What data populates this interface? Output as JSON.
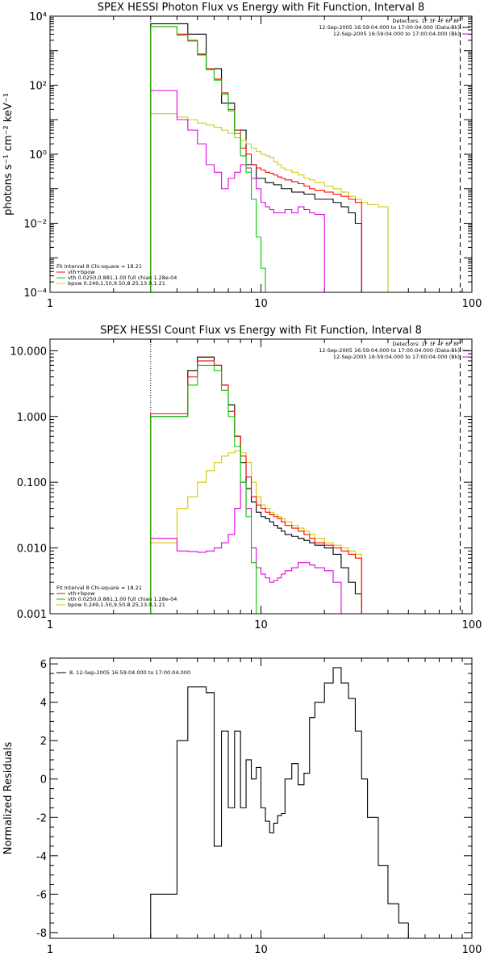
{
  "colors": {
    "data": "#000000",
    "total": "#ff0000",
    "vth": "#00c800",
    "bpow": "#d2c800",
    "bk": "#e000e0"
  },
  "chart_data": [
    {
      "type": "line",
      "title": "SPEX HESSI Photon Flux vs Energy with Fit Function, Interval 8",
      "ylabel": "photons s⁻¹ cm⁻² keV⁻¹",
      "xlabel": "",
      "xscale": "log",
      "yscale": "log",
      "xlim": [
        1,
        100
      ],
      "ylim": [
        0.0001,
        10000
      ],
      "x_ticks": [
        "1",
        "10",
        "100"
      ],
      "y_ticks": [
        "10⁻⁴",
        "10⁻²",
        "10⁰",
        "10²",
        "10⁴"
      ],
      "annotations": {
        "detectors": "Detectors: 1F 3F 4F 6F 8F",
        "time1": "12-Sep-2005 16:59:04.000 to 17:00:04.000 (Data-Bk)",
        "time2": "12-Sep-2005 16:59:04.000 to 17:00:04.000 (Bk)"
      },
      "legend": {
        "header": "Fit Interval 8   Chi-square = 18.21",
        "entries": [
          "vth+bpow",
          "vth 0.0250,0.881,1.00  full chian 1.28e-04",
          "bpow 0.249,1.50,9.50,8.25,13.0,1.21"
        ]
      },
      "edges": [
        3,
        3.5,
        4,
        4.5,
        5,
        5.5,
        6,
        6.5,
        7,
        7.5,
        8,
        8.5,
        9,
        9.5,
        10,
        10.5,
        11,
        11.5,
        12,
        12.5,
        13,
        14,
        15,
        16,
        17,
        18,
        20,
        22,
        24,
        26,
        28,
        30,
        32,
        36,
        40,
        45,
        50,
        56,
        63,
        70,
        80,
        90
      ],
      "vlines": {
        "dotted": 3,
        "dashed": 88
      },
      "series": [
        {
          "key": "data",
          "values": [
            6000,
            6000,
            6000,
            3000,
            3000,
            300,
            300,
            30,
            30,
            5,
            5,
            0.5,
            0.5,
            0.2,
            0.2,
            0.15,
            0.15,
            0.13,
            0.13,
            0.1,
            0.1,
            0.08,
            0.08,
            0.07,
            0.07,
            0.05,
            0.05,
            0.04,
            0.03,
            0.02,
            0.01
          ]
        },
        {
          "key": "total",
          "values": [
            5000,
            5000,
            3000,
            2000,
            800,
            300,
            150,
            60,
            20,
            5,
            1.5,
            1,
            0.5,
            0.4,
            0.35,
            0.3,
            0.28,
            0.25,
            0.22,
            0.2,
            0.18,
            0.16,
            0.14,
            0.12,
            0.1,
            0.09,
            0.08,
            0.07,
            0.06,
            0.05,
            0.04
          ]
        },
        {
          "key": "vth",
          "values": [
            5000,
            5000,
            2800,
            1900,
            750,
            280,
            140,
            55,
            18,
            4,
            0.9,
            0.3,
            0.05,
            0.004,
            0.0005,
            0.0001,
            0.0001
          ]
        },
        {
          "key": "bpow",
          "values": [
            15,
            15,
            12,
            10,
            8,
            7,
            6,
            5,
            4,
            3,
            2.5,
            2,
            1.5,
            1.2,
            1,
            0.9,
            0.8,
            0.6,
            0.5,
            0.4,
            0.35,
            0.3,
            0.25,
            0.2,
            0.18,
            0.15,
            0.12,
            0.1,
            0.08,
            0.06,
            0.05,
            0.04,
            0.035,
            0.03
          ]
        },
        {
          "key": "bk",
          "values": [
            70,
            70,
            10,
            5,
            2,
            0.5,
            0.3,
            0.1,
            0.2,
            0.3,
            0.5,
            0.4,
            0.2,
            0.1,
            0.04,
            0.03,
            0.025,
            0.02,
            0.02,
            0.02,
            0.025,
            0.02,
            0.03,
            0.025,
            0.02,
            0.018
          ]
        }
      ]
    },
    {
      "type": "line",
      "title": "SPEX HESSI Count Flux vs Energy with Fit Function, Interval 8",
      "ylabel": "",
      "xlabel": "",
      "xscale": "log",
      "yscale": "log",
      "xlim": [
        1,
        100
      ],
      "ylim": [
        0.001,
        15
      ],
      "x_ticks": [
        "1",
        "10",
        "100"
      ],
      "y_ticks": [
        "0.001",
        "0.010",
        "0.100",
        "1.000",
        "10.000"
      ],
      "annotations": {
        "detectors": "Detectors: 1F 3F 4F 6F 8F",
        "time1": "12-Sep-2005 16:59:04.000 to 17:00:04.000 (Data-Bk)",
        "time2": "12-Sep-2005 16:59:04.000 to 17:00:04.000 (Bk)"
      },
      "legend": {
        "header": "Fit Interval 8   Chi-square = 18.21",
        "entries": [
          "vth+bpow",
          "vth 0.0250,0.881,1.00  full chian 1.28e-04",
          "bpow 0.249,1.50,9.50,8.25,13.0,1.21"
        ]
      },
      "edges": [
        3,
        3.5,
        4,
        4.5,
        5,
        5.5,
        6,
        6.5,
        7,
        7.5,
        8,
        8.5,
        9,
        9.5,
        10,
        10.5,
        11,
        11.5,
        12,
        12.5,
        13,
        14,
        15,
        16,
        17,
        18,
        20,
        22,
        24,
        26,
        28,
        30,
        32,
        36,
        40,
        45,
        50,
        56,
        63,
        70,
        80,
        90
      ],
      "vlines": {
        "dotted": 3,
        "dashed": 88
      },
      "series": [
        {
          "key": "data",
          "values": [
            1,
            1,
            1,
            5,
            8,
            8,
            6,
            3,
            1.5,
            0.5,
            0.2,
            0.08,
            0.05,
            0.035,
            0.03,
            0.028,
            0.025,
            0.022,
            0.02,
            0.018,
            0.016,
            0.015,
            0.014,
            0.013,
            0.012,
            0.011,
            0.01,
            0.008,
            0.005,
            0.003,
            0.002
          ]
        },
        {
          "key": "total",
          "values": [
            1.1,
            1.1,
            1.1,
            4,
            7,
            7,
            6,
            3,
            1.2,
            0.5,
            0.25,
            0.12,
            0.06,
            0.045,
            0.04,
            0.035,
            0.032,
            0.03,
            0.028,
            0.025,
            0.022,
            0.02,
            0.018,
            0.016,
            0.014,
            0.012,
            0.011,
            0.01,
            0.009,
            0.008,
            0.007
          ]
        },
        {
          "key": "vth",
          "values": [
            1,
            1,
            1,
            3,
            6,
            6,
            5,
            2.5,
            1,
            0.35,
            0.1,
            0.03,
            0.006,
            0.001,
            0.001
          ]
        },
        {
          "key": "bpow",
          "values": [
            0.012,
            0.012,
            0.04,
            0.06,
            0.1,
            0.15,
            0.2,
            0.25,
            0.28,
            0.3,
            0.28,
            0.2,
            0.1,
            0.06,
            0.045,
            0.04,
            0.035,
            0.032,
            0.03,
            0.028,
            0.025,
            0.022,
            0.02,
            0.018,
            0.016,
            0.014,
            0.012,
            0.011,
            0.01,
            0.009,
            0.008
          ]
        },
        {
          "key": "bk",
          "values": [
            0.014,
            0.014,
            0.009,
            0.0088,
            0.0086,
            0.009,
            0.01,
            0.012,
            0.016,
            0.04,
            0.1,
            0.04,
            0.01,
            0.005,
            0.004,
            0.0035,
            0.003,
            0.0032,
            0.0035,
            0.004,
            0.0045,
            0.005,
            0.006,
            0.006,
            0.0055,
            0.005,
            0.0045,
            0.003,
            0.001,
            0.001
          ]
        }
      ]
    },
    {
      "type": "line",
      "title": "",
      "ylabel": "Normalized Residuals",
      "xlabel": "",
      "xscale": "log",
      "yscale": "linear",
      "xlim": [
        1,
        100
      ],
      "ylim": [
        -8.3,
        6.3
      ],
      "x_ticks": [
        "1",
        "10",
        "100"
      ],
      "y_ticks": [
        "-8",
        "-6",
        "-4",
        "-2",
        "0",
        "2",
        "4",
        "6"
      ],
      "legend": {
        "entries": [
          "8, 12-Sep-2005 16:59:04.000 to 17:00:04.000"
        ]
      },
      "edges": [
        3,
        3.5,
        4,
        4.5,
        5,
        5.5,
        6,
        6.5,
        7,
        7.5,
        8,
        8.5,
        9,
        9.5,
        10,
        10.5,
        11,
        11.5,
        12,
        12.5,
        13,
        14,
        15,
        16,
        17,
        18,
        20,
        22,
        24,
        26,
        28,
        30,
        32,
        36,
        40,
        45,
        50,
        56,
        63,
        70,
        80,
        90
      ],
      "series": [
        {
          "key": "data",
          "values": [
            -6,
            -6,
            2,
            4.8,
            4.8,
            4.5,
            -3.5,
            2.5,
            -1.5,
            2.5,
            -1.5,
            1,
            0,
            0.6,
            -1.5,
            -2.2,
            -2.8,
            -2.3,
            -1.9,
            -1.8,
            0,
            0.8,
            -0.3,
            0.3,
            3.2,
            4,
            5,
            5.8,
            5,
            4.2,
            2.5,
            0,
            -2,
            -4.5,
            -6.5,
            -7.5
          ]
        }
      ]
    }
  ]
}
